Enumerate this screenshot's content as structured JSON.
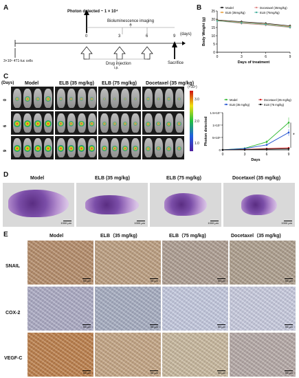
{
  "panel_labels": [
    "A",
    "B",
    "C",
    "D",
    "E"
  ],
  "panelA": {
    "photon_label": "Photon detected ~ 1 × 10⁴",
    "imaging_label": "Bioluminescence imaging",
    "days_label": "(days)",
    "ticks": [
      "0",
      "3",
      "6",
      "9"
    ],
    "cells_label": "3×10⁵ 4T1-luc cells",
    "injection_label": "Drug injection",
    "ip_label": "i.p.",
    "sacrifice_label": "Sacrifice"
  },
  "panelB": {
    "legend": [
      "Model",
      "Docetaxel (35mg/kg)",
      "ELB (35mg/kg)",
      "ELB (75mg/kg)"
    ]
  },
  "panelC": {
    "day_header": "(Days)",
    "row_labels": [
      "0",
      "6",
      "9"
    ],
    "groups": [
      "Model",
      "ELB (35 mg/kg)",
      "ELB (75 mg/kg)",
      "Docetaxel (35 mg/kg)"
    ],
    "colorbar_unit": "(×10⁷)",
    "colorbar_ticks": [
      "3.0",
      "2.0",
      "1.0"
    ],
    "legend": [
      "Model",
      "Docetaxel (35 mg/kg)",
      "ELB (35 mg/kg)",
      "ELB (75 mg/kg)"
    ],
    "star": "*"
  },
  "panelD": {
    "groups": [
      "Model",
      "ELB (35 mg/kg)",
      "ELB (75 mg/kg)",
      "Docetaxel (35 mg/kg)"
    ],
    "scale": "1000 μm"
  },
  "panelE": {
    "groups": [
      "Model",
      "ELB（35 mg/kg)",
      "ELB（75 mg/kg)",
      "Docetaxel（35 mg/kg)"
    ],
    "rows": [
      "SNAIL",
      "COX-2",
      "VEGF-C"
    ],
    "scale": "50 μm"
  },
  "chart_data": [
    {
      "type": "line",
      "panel": "B",
      "title": "",
      "xlabel": "Days of treatment",
      "ylabel": "Body Weight (g)",
      "x": [
        0,
        3,
        6,
        9
      ],
      "xlim": [
        0,
        9
      ],
      "ylim": [
        0,
        25
      ],
      "yticks": [
        0,
        5,
        10,
        15,
        20,
        25
      ],
      "xticks": [
        0,
        3,
        6,
        9
      ],
      "legend_position": "top-right",
      "series": [
        {
          "name": "Model",
          "color": "#111111",
          "values": [
            19.5,
            18.5,
            17.5,
            16.0
          ]
        },
        {
          "name": "Docetaxel (35mg/kg)",
          "color": "#e08a8a",
          "values": [
            19.0,
            17.5,
            16.5,
            15.0
          ]
        },
        {
          "name": "ELB (35mg/kg)",
          "color": "#e8a040",
          "values": [
            19.2,
            18.0,
            17.0,
            15.5
          ]
        },
        {
          "name": "ELB (75mg/kg)",
          "color": "#4ab0a0",
          "values": [
            19.0,
            17.8,
            16.8,
            15.2
          ]
        }
      ]
    },
    {
      "type": "line",
      "panel": "C",
      "title": "",
      "xlabel": "Days",
      "ylabel": "Photon detected",
      "x": [
        0,
        3,
        6,
        9
      ],
      "xlim": [
        0,
        9
      ],
      "ylim": [
        0,
        15000000
      ],
      "yticks_text": [
        "0",
        "5×10⁶",
        "1×10⁷",
        "1.5×10⁷"
      ],
      "xticks": [
        0,
        3,
        6,
        9
      ],
      "series": [
        {
          "name": "Model",
          "color": "#2eb82e",
          "values": [
            0,
            600000,
            3200000,
            11000000
          ]
        },
        {
          "name": "Docetaxel (35 mg/kg)",
          "color": "#d62020",
          "values": [
            0,
            200000,
            500000,
            800000
          ]
        },
        {
          "name": "ELB (35 mg/kg)",
          "color": "#2050d0",
          "values": [
            0,
            500000,
            2000000,
            7000000
          ]
        },
        {
          "name": "ELB (75 mg/kg)",
          "color": "#111111",
          "values": [
            0,
            100000,
            300000,
            400000
          ]
        }
      ]
    }
  ]
}
